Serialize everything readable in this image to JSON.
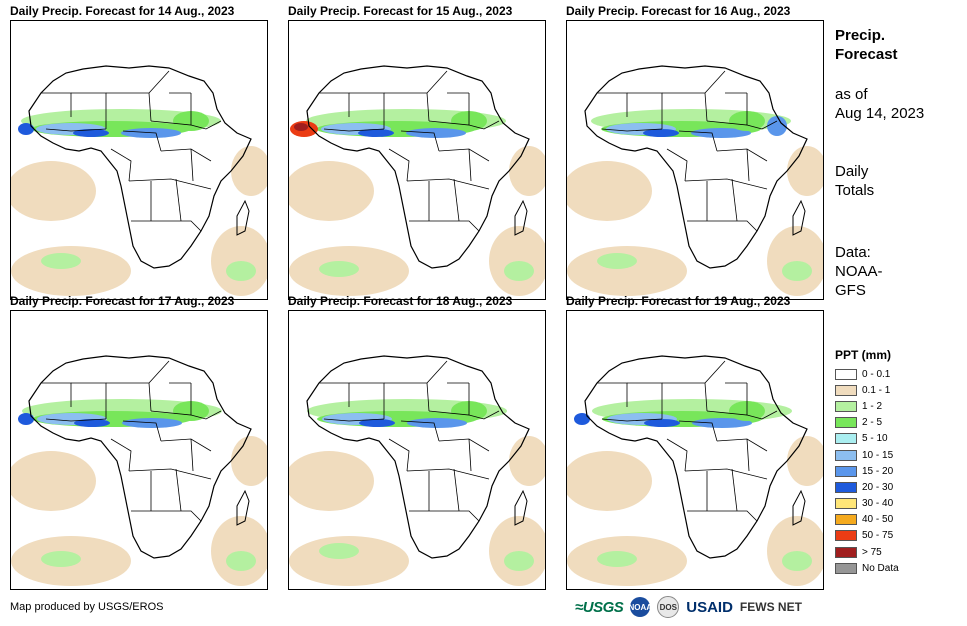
{
  "panels": [
    {
      "title": "Daily Precip. Forecast for 14 Aug., 2023"
    },
    {
      "title": "Daily Precip. Forecast for 15 Aug., 2023"
    },
    {
      "title": "Daily Precip. Forecast for 16 Aug., 2023"
    },
    {
      "title": "Daily Precip. Forecast for 17 Aug., 2023"
    },
    {
      "title": "Daily Precip. Forecast for 18 Aug., 2023"
    },
    {
      "title": "Daily Precip. Forecast for 19 Aug., 2023"
    }
  ],
  "side": {
    "title_line1": "Precip.",
    "title_line2": "Forecast",
    "asof_line1": "as of",
    "asof_line2": "Aug 14, 2023",
    "totals_line1": "Daily",
    "totals_line2": "Totals",
    "data_line1": "Data:",
    "data_line2": "NOAA-",
    "data_line3": "GFS"
  },
  "legend": {
    "title": "PPT (mm)",
    "items": [
      {
        "label": "0 - 0.1",
        "color": "#ffffff"
      },
      {
        "label": "0.1 - 1",
        "color": "#f0dcbe"
      },
      {
        "label": "1 - 2",
        "color": "#b4f0a0"
      },
      {
        "label": "2 - 5",
        "color": "#78e65a"
      },
      {
        "label": "5 - 10",
        "color": "#aaeef0"
      },
      {
        "label": "10 - 15",
        "color": "#8cbef0"
      },
      {
        "label": "15 - 20",
        "color": "#5a96eb"
      },
      {
        "label": "20 - 30",
        "color": "#1e5adc"
      },
      {
        "label": "30 - 40",
        "color": "#ffe678"
      },
      {
        "label": "40 - 50",
        "color": "#f5aa1e"
      },
      {
        "label": "50 - 75",
        "color": "#eb3c14"
      },
      {
        "label": "> 75",
        "color": "#a01e1e"
      },
      {
        "label": "No Data",
        "color": "#969696"
      }
    ]
  },
  "footer": {
    "credit": "Map produced by USGS/EROS",
    "logos": {
      "usgs": "≈USGS",
      "noaa": "NOAA",
      "dos": "DOS",
      "usaid": "USAID",
      "fews": "FEWS NET"
    }
  }
}
